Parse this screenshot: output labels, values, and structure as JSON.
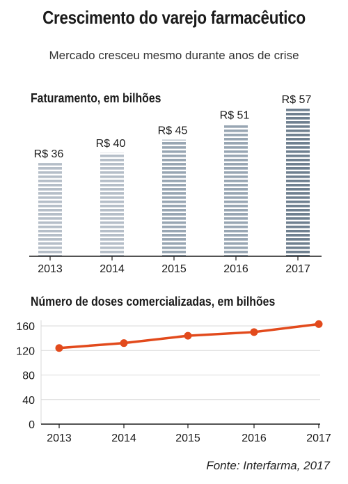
{
  "header": {
    "title": "Crescimento do varejo farmacêutico",
    "subtitle": "Mercado cresceu mesmo durante anos de crise"
  },
  "source": "Fonte: Interfarma, 2017",
  "colors": {
    "bar_light": "#b5bec8",
    "bar_mid": "#98a6b3",
    "bar_dark": "#6f8090",
    "line": "#e24a1c",
    "grid": "#d9d9d9",
    "axis": "#1a1a1a"
  },
  "chart_data": [
    {
      "type": "bar",
      "title": "Faturamento, em bilhões",
      "categories": [
        "2013",
        "2014",
        "2015",
        "2016",
        "2017"
      ],
      "values": [
        36,
        40,
        45,
        51,
        57
      ],
      "value_labels": [
        "R$ 36",
        "R$ 40",
        "R$ 45",
        "R$ 51",
        "R$ 57"
      ],
      "ylim": [
        0,
        57
      ],
      "grid": false
    },
    {
      "type": "line",
      "title": "Número de doses comercializadas, em bilhões",
      "x": [
        "2013",
        "2014",
        "2015",
        "2016",
        "2017"
      ],
      "series": [
        {
          "values": [
            124,
            132,
            144,
            150,
            163
          ]
        }
      ],
      "ylim": [
        0,
        160
      ],
      "yticks": [
        "0",
        "40",
        "80",
        "120",
        "160"
      ],
      "grid": true
    }
  ]
}
